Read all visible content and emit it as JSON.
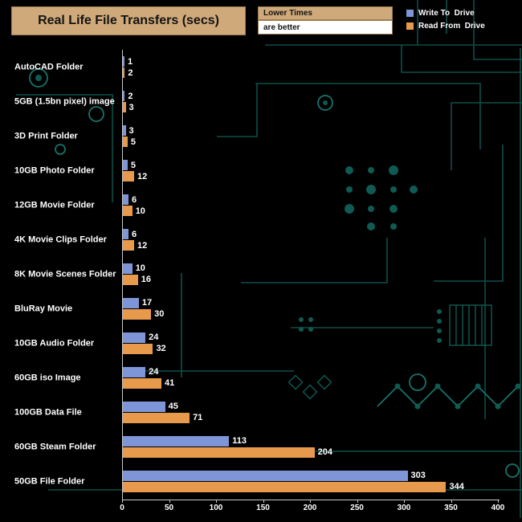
{
  "header": {
    "title": "Real Life File Transfers (secs)",
    "note_top": "Lower Times",
    "note_bottom": "are better"
  },
  "legend": [
    {
      "label": "Write To  Drive",
      "color": "#7e96d8"
    },
    {
      "label": "Read From  Drive",
      "color": "#e79a4c"
    }
  ],
  "colors": {
    "background": "#000000",
    "title_box": "#cfa97a",
    "axis": "#c9c9c9",
    "text": "#ffffff",
    "circuit": "#0d4f49"
  },
  "chart_data": {
    "type": "bar",
    "orientation": "horizontal",
    "title": "Real Life File Transfers (secs)",
    "xlabel": "",
    "ylabel": "",
    "xlim": [
      0,
      400
    ],
    "xticks": [
      0,
      50,
      100,
      150,
      200,
      250,
      300,
      350,
      400
    ],
    "grid": false,
    "legend_position": "top-right",
    "categories": [
      "AutoCAD Folder",
      "5GB (1.5bn pixel) image",
      "3D Print Folder",
      "10GB Photo Folder",
      "12GB Movie Folder",
      "4K Movie Clips Folder",
      "8K Movie Scenes Folder",
      "BluRay Movie",
      "10GB Audio Folder",
      "60GB iso Image",
      "100GB Data File",
      "60GB Steam Folder",
      "50GB File Folder"
    ],
    "series": [
      {
        "name": "Write To Drive",
        "color": "#7e96d8",
        "values": [
          1,
          2,
          3,
          5,
          6,
          6,
          10,
          17,
          24,
          24,
          45,
          113,
          303
        ]
      },
      {
        "name": "Read From Drive",
        "color": "#e79a4c",
        "values": [
          2,
          3,
          5,
          12,
          10,
          12,
          16,
          30,
          32,
          41,
          71,
          204,
          344
        ]
      }
    ]
  }
}
